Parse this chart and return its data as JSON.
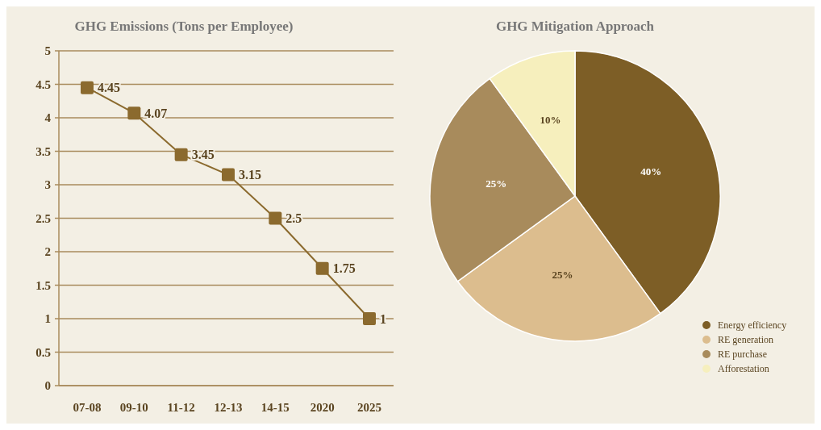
{
  "chart_data": [
    {
      "type": "line",
      "title": "GHG Emissions (Tons per Employee)",
      "categories": [
        "07-08",
        "09-10",
        "11-12",
        "12-13",
        "14-15",
        "2020",
        "2025"
      ],
      "series": [
        {
          "color": "#8b6a2e",
          "values": [
            4.45,
            4.07,
            3.45,
            3.15,
            2.5,
            1.75,
            1
          ]
        }
      ],
      "ylim": [
        0,
        5
      ],
      "yticks": [
        0,
        0.5,
        1,
        1.5,
        2,
        2.5,
        3,
        3.5,
        4,
        4.5,
        5
      ],
      "grid": "y",
      "marker": "square",
      "data_labels": true
    },
    {
      "type": "pie",
      "title": "GHG Mitigation Approach",
      "categories": [
        "Energy efficiency",
        "RE generation",
        "RE purchase",
        "Afforestation"
      ],
      "values": [
        40,
        25,
        25,
        10
      ],
      "value_labels": [
        "40%",
        "25%",
        "25%",
        "10%"
      ],
      "colors": [
        "#7d5e26",
        "#dcbd8e",
        "#a88b5c",
        "#f6efbd"
      ],
      "legend": "bottom right"
    }
  ]
}
